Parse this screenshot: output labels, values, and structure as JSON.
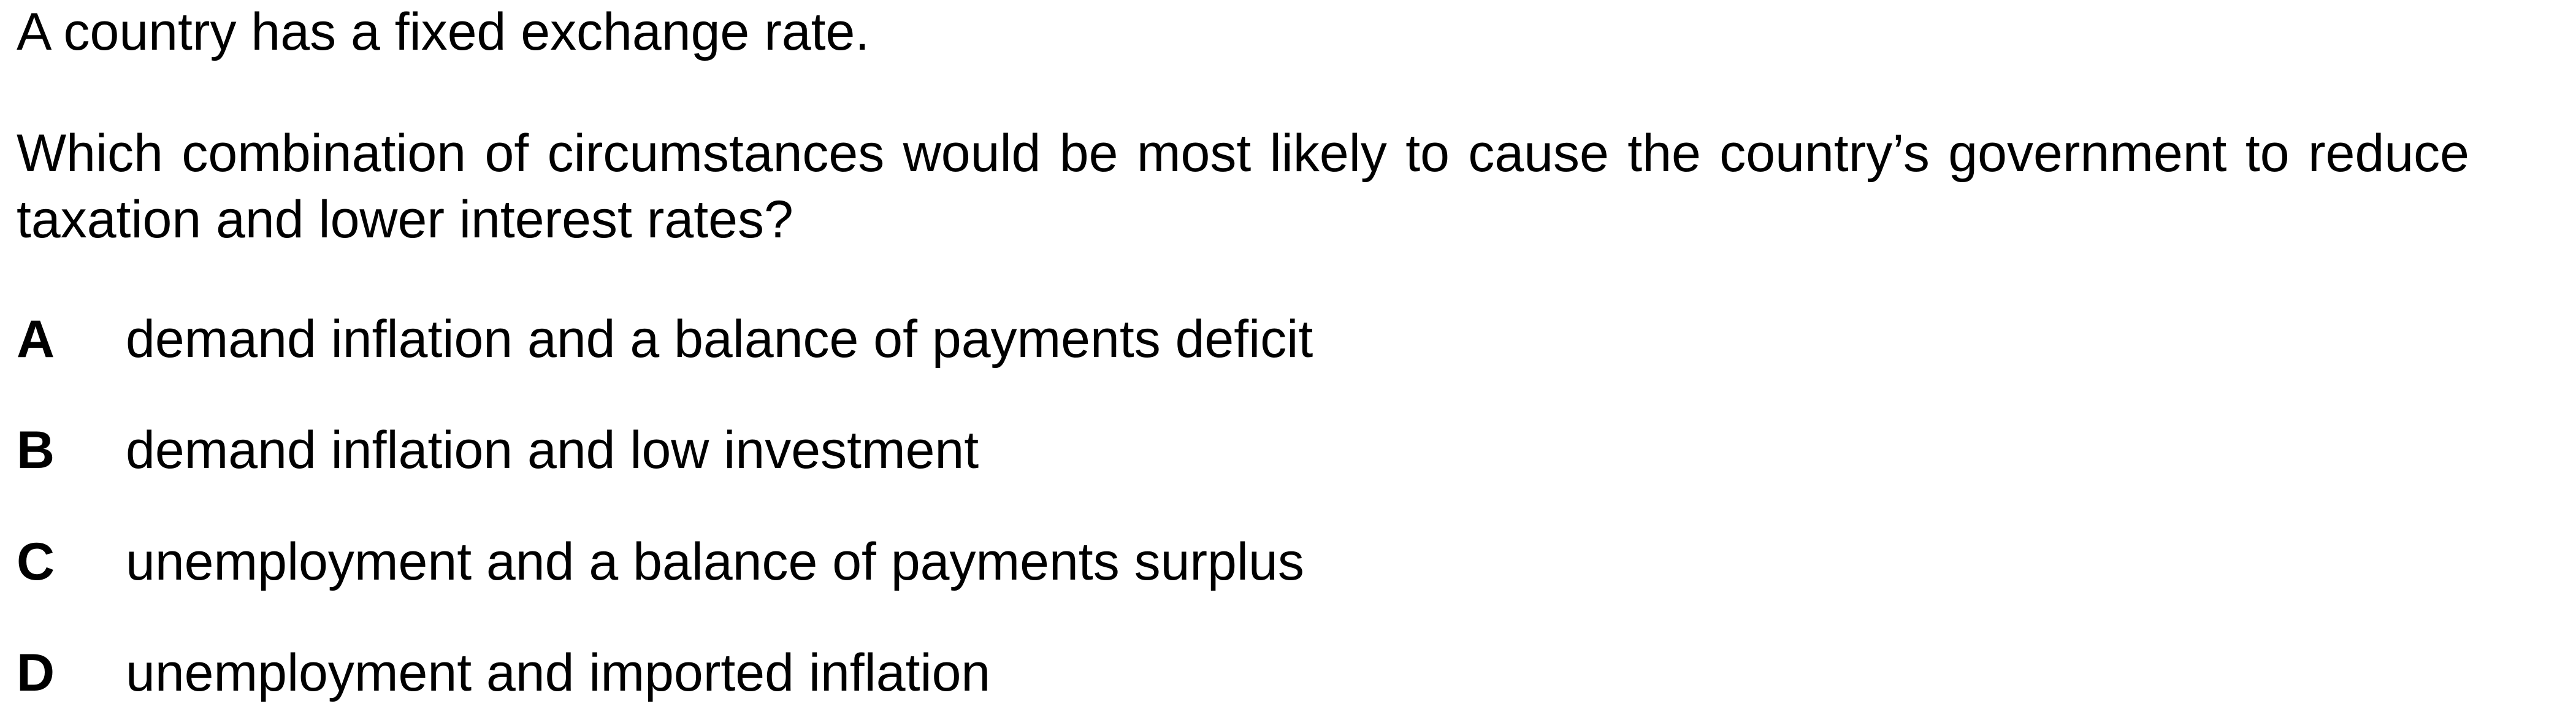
{
  "question": {
    "intro": "A country has a fixed exchange rate.",
    "stem_line1": "Which combination of circumstances would be most likely to cause the country’s government to",
    "stem_line2": "reduce taxation and lower interest rates?"
  },
  "options": [
    {
      "letter": "A",
      "text": "demand inflation and a balance of payments deficit"
    },
    {
      "letter": "B",
      "text": "demand inflation and low investment"
    },
    {
      "letter": "C",
      "text": "unemployment and a balance of payments surplus"
    },
    {
      "letter": "D",
      "text": "unemployment and imported inflation"
    }
  ]
}
